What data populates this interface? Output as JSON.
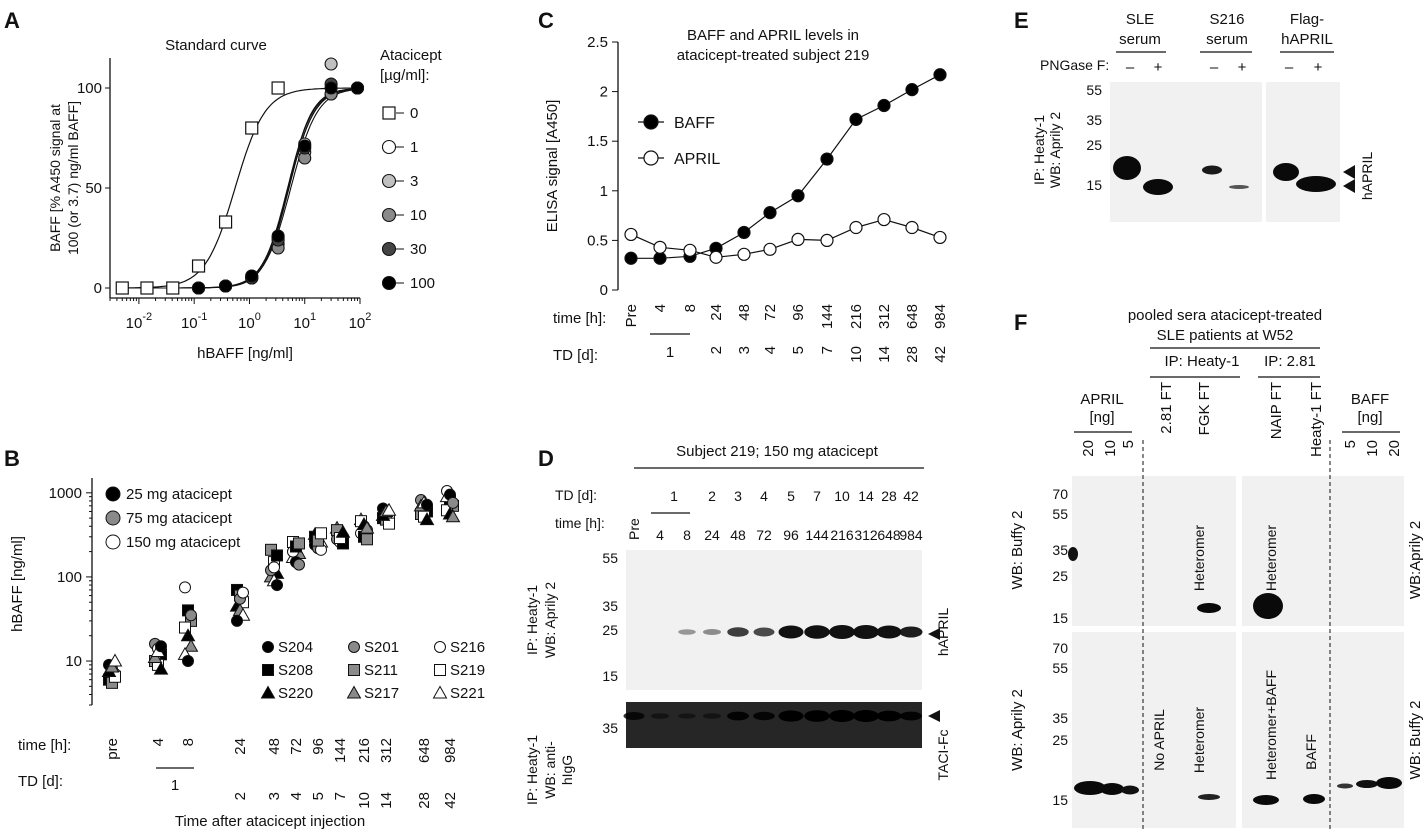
{
  "panelA": {
    "letter": "A",
    "title": "Standard curve",
    "ylabel_line1": "BAFF [% A450 signal at",
    "ylabel_line2": "100 (or 3.7) ng/ml BAFF]",
    "xlabel": "hBAFF [ng/ml]",
    "yticks": [
      "0",
      "50",
      "100"
    ],
    "xticks": [
      "10-2",
      "10-1",
      "100",
      "101",
      "102"
    ],
    "legend_title_line1": "Atacicept",
    "legend_title_line2": "[µg/ml]:",
    "legend": [
      "0",
      "1",
      "3",
      "10",
      "30",
      "100"
    ],
    "colors": [
      "#ffffff",
      "#ffffff",
      "#c0c0c0",
      "#8a8a8a",
      "#444444",
      "#000000"
    ]
  },
  "panelB": {
    "letter": "B",
    "ylabel": "hBAFF [ng/ml]",
    "yticks": [
      "10",
      "100",
      "1000"
    ],
    "dose_legend": [
      "25 mg atacicept",
      "75 mg atacicept",
      "150 mg atacicept"
    ],
    "subjects": [
      [
        "S204",
        "S201",
        "S216"
      ],
      [
        "S208",
        "S211",
        "S219"
      ],
      [
        "S220",
        "S217",
        "S221"
      ]
    ],
    "time_label": "time [h]:",
    "td_label": "TD [d]:",
    "times": [
      "pre",
      "4",
      "8",
      "24",
      "48",
      "72",
      "96",
      "144",
      "216",
      "312",
      "648",
      "984"
    ],
    "days": [
      "1",
      "2",
      "3",
      "4",
      "5",
      "7",
      "10",
      "14",
      "28",
      "42"
    ],
    "xlabel": "Time after atacicept injection"
  },
  "panelC": {
    "letter": "C",
    "title_line1": "BAFF and APRIL levels in",
    "title_line2": "atacicept-treated subject 219",
    "ylabel": "ELISA signal [A450]",
    "yticks": [
      "0",
      "0.5",
      "1",
      "1.5",
      "2",
      "2.5"
    ],
    "legend": [
      "BAFF",
      "APRIL"
    ],
    "time_label": "time [h]:",
    "td_label": "TD [d]:",
    "times": [
      "Pre",
      "4",
      "8",
      "24",
      "48",
      "72",
      "96",
      "144",
      "216",
      "312",
      "648",
      "984"
    ],
    "days": [
      "1",
      "2",
      "3",
      "4",
      "5",
      "7",
      "10",
      "14",
      "28",
      "42"
    ]
  },
  "chart_data": [
    {
      "type": "line",
      "title": "Standard curve",
      "xlabel": "hBAFF [ng/ml]",
      "ylabel": "BAFF [% A450 signal at 100 (or 3.7) ng/ml BAFF]",
      "xscale": "log",
      "xlim": [
        0.003,
        100
      ],
      "ylim": [
        -5,
        115
      ],
      "series": [
        {
          "name": "0",
          "x": [
            0.005,
            0.014,
            0.041,
            0.12,
            0.37,
            1.1,
            3.3
          ],
          "y": [
            0,
            0,
            0,
            11,
            33,
            80,
            100
          ]
        },
        {
          "name": "1",
          "x": [
            0.12,
            0.37,
            1.1,
            3.3,
            10,
            30,
            90
          ],
          "y": [
            0,
            1,
            5,
            22,
            68,
            97,
            100
          ]
        },
        {
          "name": "3",
          "x": [
            0.12,
            0.37,
            1.1,
            3.3,
            10,
            30,
            90
          ],
          "y": [
            0,
            1,
            6,
            25,
            72,
            112,
            100
          ]
        },
        {
          "name": "10",
          "x": [
            0.12,
            0.37,
            1.1,
            3.3,
            10,
            30,
            90
          ],
          "y": [
            0,
            1,
            5,
            20,
            65,
            97,
            100
          ]
        },
        {
          "name": "30",
          "x": [
            0.12,
            0.37,
            1.1,
            3.3,
            10,
            30,
            90
          ],
          "y": [
            0,
            1,
            5,
            24,
            70,
            102,
            100
          ]
        },
        {
          "name": "100",
          "x": [
            0.12,
            0.37,
            1.1,
            3.3,
            10,
            30,
            90
          ],
          "y": [
            0,
            1,
            6,
            26,
            71,
            100,
            100
          ]
        }
      ]
    },
    {
      "type": "line",
      "title": "BAFF and APRIL levels in atacicept-treated subject 219",
      "ylabel": "ELISA signal [A450]",
      "categories": [
        "Pre",
        "4",
        "8",
        "24",
        "48",
        "72",
        "96",
        "144",
        "216",
        "312",
        "648",
        "984"
      ],
      "ylim": [
        0,
        2.5
      ],
      "series": [
        {
          "name": "BAFF",
          "values": [
            0.32,
            0.32,
            0.34,
            0.42,
            0.58,
            0.78,
            0.95,
            1.32,
            1.72,
            1.86,
            2.02,
            2.17
          ]
        },
        {
          "name": "APRIL",
          "values": [
            0.56,
            0.43,
            0.4,
            0.33,
            0.36,
            0.41,
            0.51,
            0.5,
            0.63,
            0.71,
            0.63,
            0.53
          ]
        }
      ]
    }
  ],
  "panelD": {
    "letter": "D",
    "header": "Subject 219; 150 mg atacicept",
    "td_label": "TD [d]:",
    "time_label": "time [h]:",
    "days": [
      "1",
      "2",
      "3",
      "4",
      "5",
      "7",
      "10",
      "14",
      "28",
      "42"
    ],
    "times": [
      "Pre",
      "4",
      "8",
      "24",
      "48",
      "72",
      "96",
      "144",
      "216",
      "312",
      "648",
      "984"
    ],
    "ip1": "IP: Heaty-1",
    "wb1": "WB: Aprily 2",
    "ip2": "IP: Heaty-1",
    "wb2a": "WB: anti-",
    "wb2b": "hIgG",
    "markers1": [
      "55",
      "35",
      "25",
      "15"
    ],
    "markers2": [
      "35"
    ],
    "band1": "hAPRIL",
    "band2": "TACI-Fc"
  },
  "panelE": {
    "letter": "E",
    "groups": [
      "SLE",
      "serum",
      "S216",
      "serum",
      "Flag-",
      "hAPRIL"
    ],
    "png": "PNGase F:",
    "signs": [
      "–",
      "+",
      "–",
      "+",
      "–",
      "+"
    ],
    "markers": [
      "55",
      "35",
      "25",
      "15"
    ],
    "ip": "IP: Heaty-1",
    "wb": "WB: Aprily 2",
    "band": "hAPRIL"
  },
  "panelF": {
    "letter": "F",
    "title_line1": "pooled sera atacicept-treated",
    "title_line2": "SLE patients at W52",
    "ip1": "IP: Heaty-1",
    "ip2": "IP: 2.81",
    "april_label": "APRIL",
    "april_unit": "[ng]",
    "april_amounts": [
      "20",
      "10",
      "5"
    ],
    "lanes": [
      "2.81 FT",
      "FGK FT",
      "NAIP FT",
      "Heaty-1 FT"
    ],
    "baff_label": "BAFF",
    "baff_unit": "[ng]",
    "baff_amounts": [
      "5",
      "10",
      "20"
    ],
    "markers_top": [
      "70",
      "55",
      "35",
      "25",
      "15"
    ],
    "markers_bottom": [
      "70",
      "55",
      "35",
      "25",
      "15"
    ],
    "wb_top_left": "WB: Buffy 2",
    "wb_top_right": "WB:Aprily 2",
    "wb_bottom_left": "WB: Aprily 2",
    "wb_bottom_right": "WB: Buffy 2",
    "label_top_fgk": "Heteromer",
    "label_top_naip": "Heteromer",
    "label_no_april": "No APRIL",
    "label_bottom_fgk": "Heteromer",
    "label_het_baff": "Heteromer+BAFF",
    "label_baff": "BAFF"
  }
}
